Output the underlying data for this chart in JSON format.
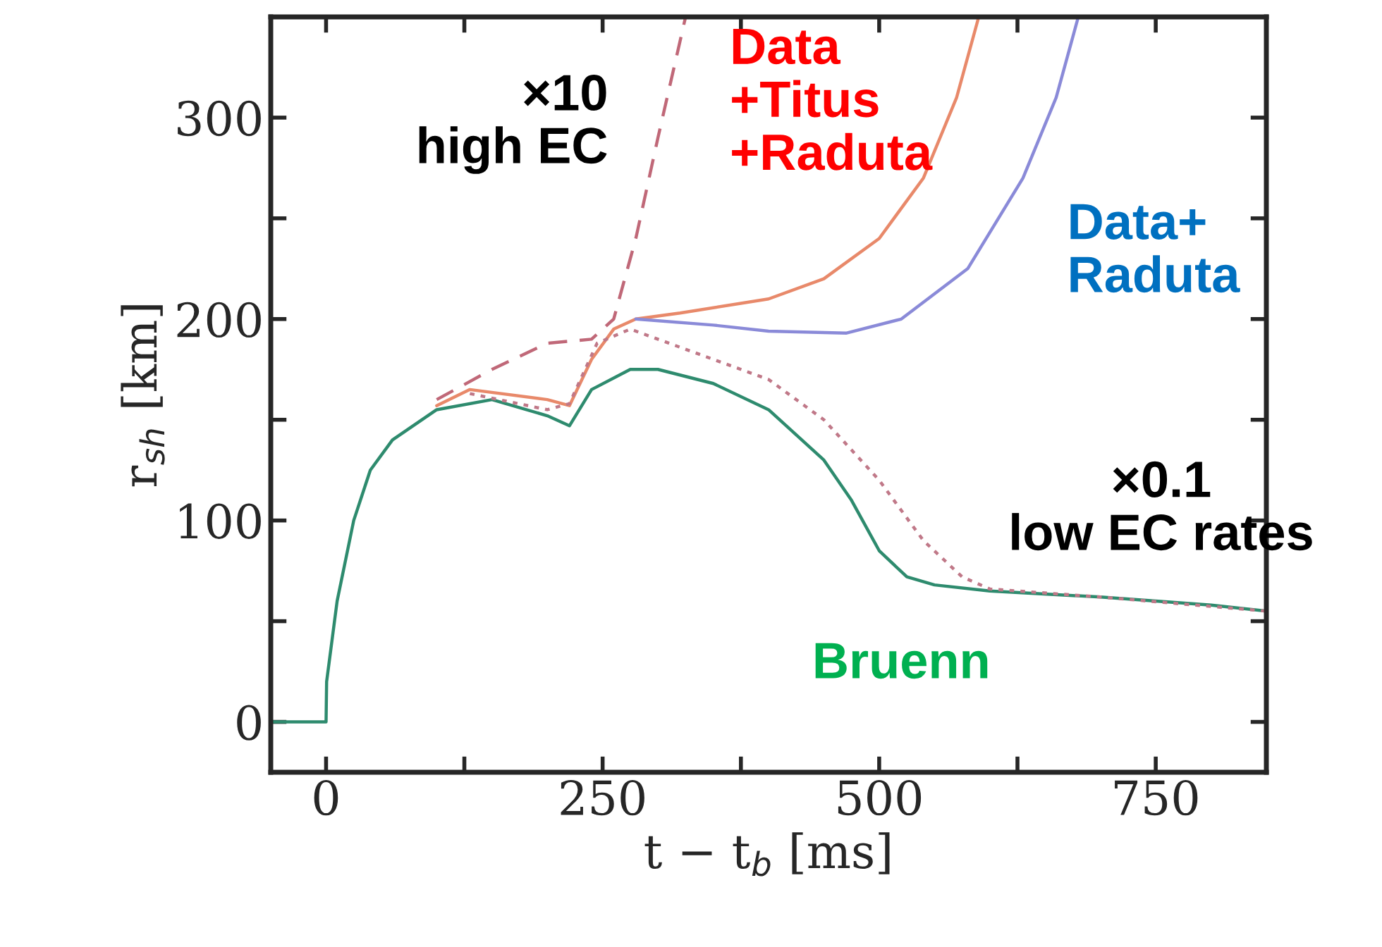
{
  "chart_data": {
    "type": "line",
    "xlabel": "t − t$_{b}$ [ms]",
    "ylabel": "r$_{sh}$ [km]",
    "xlim": [
      -50,
      850
    ],
    "ylim": [
      -25,
      350
    ],
    "xticks": [
      0,
      {
        "value": 125,
        "label": null
      },
      250,
      {
        "value": 375,
        "label": null
      },
      500,
      {
        "value": 625,
        "label": null
      },
      750
    ],
    "yticks": [
      0,
      {
        "value": 50,
        "label": null
      },
      100,
      {
        "value": 150,
        "label": null
      },
      200,
      {
        "value": 250,
        "label": null
      },
      300
    ],
    "grid": false,
    "legend": false,
    "marker": "none",
    "series": [
      {
        "name": "Bruenn",
        "color": "#2e8b6e",
        "line_style": "solid",
        "x": [
          -50,
          0,
          0.5,
          10,
          25,
          40,
          60,
          100,
          150,
          200,
          220,
          240,
          275,
          300,
          350,
          400,
          450,
          475,
          500,
          525,
          550,
          600,
          700,
          800,
          850
        ],
        "values": [
          0,
          0,
          20,
          60,
          100,
          125,
          140,
          155,
          160,
          152,
          147,
          165,
          175,
          175,
          168,
          155,
          130,
          110,
          85,
          72,
          68,
          65,
          62,
          58,
          55
        ]
      },
      {
        "name": "Data\n+Titus\n+Raduta",
        "color": "#e8896a",
        "line_style": "solid",
        "x": [
          100,
          130,
          200,
          220,
          240,
          260,
          280,
          320,
          400,
          450,
          500,
          540,
          570,
          590
        ],
        "values": [
          157,
          165,
          160,
          157,
          180,
          195,
          200,
          203,
          210,
          220,
          240,
          270,
          310,
          350
        ]
      },
      {
        "name": "Data+\nRaduta",
        "color": "#8a8ad8",
        "line_style": "solid",
        "x": [
          280,
          350,
          400,
          470,
          520,
          580,
          630,
          660,
          680
        ],
        "values": [
          200,
          197,
          194,
          193,
          200,
          225,
          270,
          310,
          350
        ]
      },
      {
        "name": "×10\nhigh EC",
        "color": "#c06878",
        "line_style": "dashed",
        "x": [
          100,
          150,
          200,
          240,
          260,
          280,
          300,
          325
        ],
        "values": [
          160,
          175,
          188,
          190,
          200,
          240,
          290,
          350
        ]
      },
      {
        "name": "×0.1\nlow EC rates",
        "color": "#c07888",
        "line_style": "dotted",
        "x": [
          130,
          200,
          220,
          245,
          275,
          350,
          400,
          450,
          500,
          540,
          575,
          600,
          700,
          850
        ],
        "values": [
          163,
          155,
          158,
          188,
          195,
          180,
          170,
          150,
          120,
          90,
          72,
          66,
          62,
          55
        ]
      }
    ]
  }
}
